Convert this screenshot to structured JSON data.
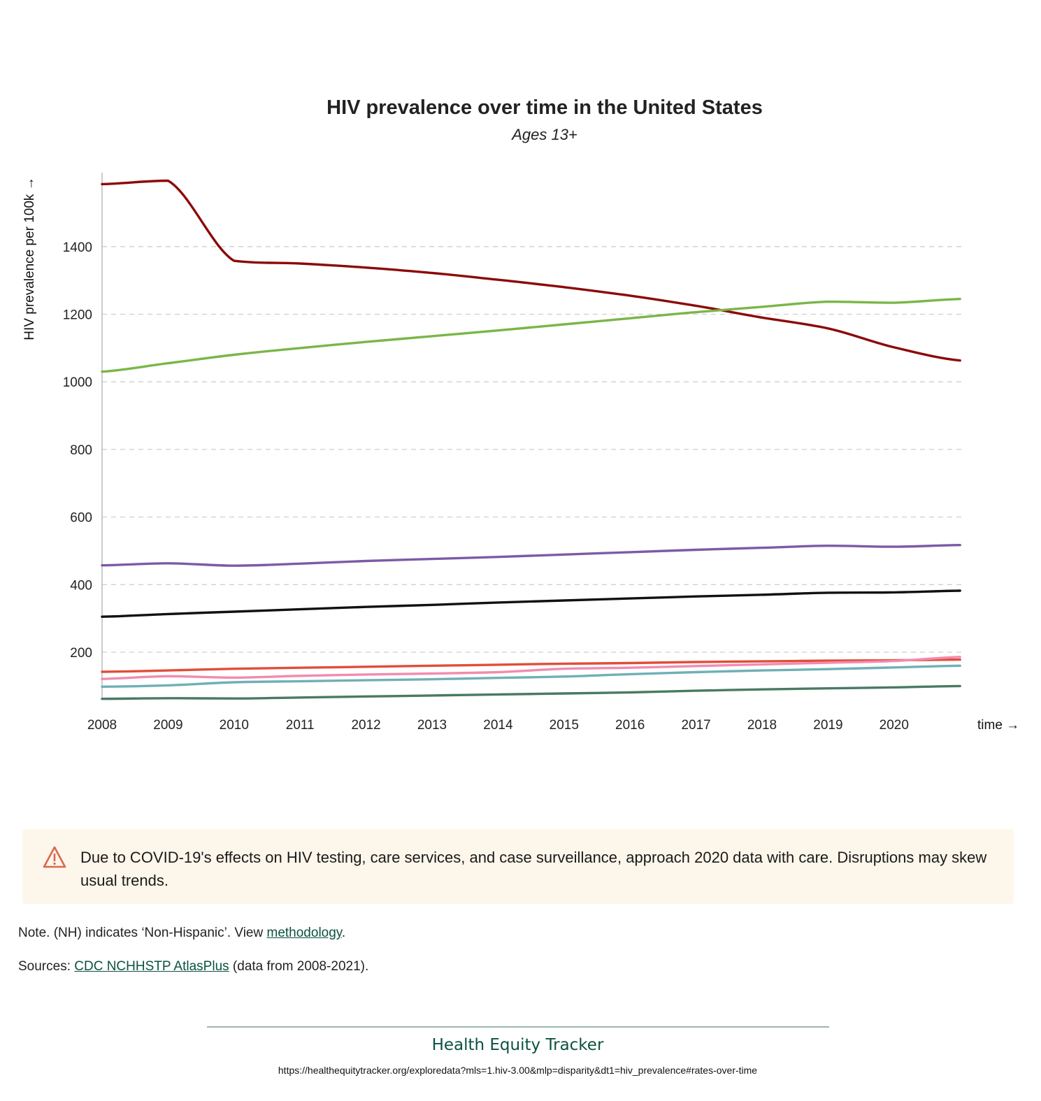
{
  "chart_data": {
    "type": "line",
    "title": "HIV prevalence over time in the United States",
    "subtitle": "Ages 13+",
    "ylabel": "HIV prevalence per 100k →",
    "xlabel": "time →",
    "x": [
      "2008",
      "2009",
      "2010",
      "2011",
      "2012",
      "2013",
      "2014",
      "2015",
      "2016",
      "2017",
      "2018",
      "2019",
      "2020",
      "2021"
    ],
    "x_tick_labels": [
      "2008",
      "2009",
      "2010",
      "2011",
      "2012",
      "2013",
      "2014",
      "2015",
      "2016",
      "2017",
      "2018",
      "2019",
      "2020"
    ],
    "y_ticks": [
      "200",
      "400",
      "600",
      "800",
      "1000",
      "1200",
      "1400"
    ],
    "ylim": [
      60,
      1600
    ],
    "grid": "horizontal dashed",
    "series": [
      {
        "color": "#8b0a0a",
        "values": [
          1585,
          1595,
          1358,
          1350,
          1338,
          1322,
          1302,
          1280,
          1255,
          1225,
          1190,
          1158,
          1102,
          1063
        ]
      },
      {
        "color": "#7ab648",
        "values": [
          1030,
          1055,
          1080,
          1100,
          1118,
          1135,
          1152,
          1170,
          1188,
          1206,
          1222,
          1237,
          1234,
          1245
        ]
      },
      {
        "color": "#7c5ba6",
        "values": [
          457,
          463,
          456,
          462,
          470,
          476,
          482,
          489,
          496,
          503,
          509,
          515,
          512,
          517
        ]
      },
      {
        "color": "#111111",
        "values": [
          305,
          313,
          320,
          327,
          334,
          340,
          347,
          353,
          359,
          365,
          370,
          376,
          377,
          382
        ]
      },
      {
        "color": "#e04e39",
        "values": [
          142,
          146,
          151,
          154,
          157,
          160,
          163,
          166,
          168,
          171,
          173,
          175,
          176,
          178
        ]
      },
      {
        "color": "#f28bb0",
        "values": [
          121,
          129,
          125,
          130,
          134,
          137,
          141,
          151,
          154,
          159,
          164,
          169,
          174,
          186
        ]
      },
      {
        "color": "#6fb0b5",
        "values": [
          98,
          102,
          111,
          114,
          117,
          120,
          124,
          128,
          135,
          141,
          146,
          150,
          155,
          160
        ]
      },
      {
        "color": "#4a7a62",
        "values": [
          62,
          64,
          63,
          66,
          69,
          72,
          75,
          78,
          81,
          86,
          90,
          93,
          96,
          100
        ]
      }
    ]
  },
  "alert": {
    "text": "Due to COVID-19's effects on HIV testing, care services, and case surveillance, approach 2020 data with care. Disruptions may skew usual trends.",
    "icon": "warning-triangle-icon",
    "icon_color": "#d9684f"
  },
  "notes": {
    "note_prefix": "Note. (NH) indicates ‘Non-Hispanic’. View ",
    "note_link": "methodology",
    "note_suffix": ".",
    "sources_prefix": "Sources: ",
    "sources_link": "CDC NCHHSTP AtlasPlus",
    "sources_suffix": " (data from 2008-2021)."
  },
  "footer": {
    "brand": "Health Equity Tracker",
    "url": "https://healthequitytracker.org/exploredata?mls=1.hiv-3.00&mlp=disparity&dt1=hiv_prevalence#rates-over-time"
  }
}
